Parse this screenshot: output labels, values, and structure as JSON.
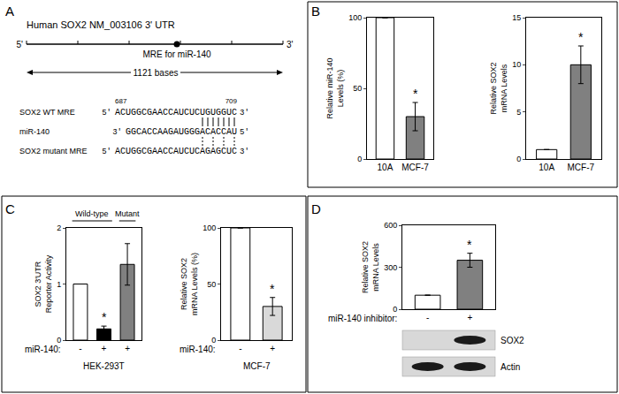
{
  "panel_labels": [
    "A",
    "B",
    "C",
    "D"
  ],
  "diagram": {
    "title": "Human SOX2 NM_003106 3' UTR",
    "ends": [
      "5'",
      "3'"
    ],
    "site_label": "MRE for miR-140",
    "length_label": "1121 bases",
    "positions": [
      687,
      709
    ],
    "rows": [
      {
        "label": "SOX2 WT MRE",
        "left": "5'",
        "sequence": "ACUGGCGAACCAUCUCUGUGGUC",
        "right": "3'"
      },
      {
        "label": "miR-140",
        "left": "3'",
        "sequence": "GGCACCAAGAUGGGACACCAU",
        "right": "5'"
      },
      {
        "label": "SOX2 mutant MRE",
        "left": "5'",
        "sequence": "ACUGGCGAACCAUCUCAGAGCUC",
        "right": "3'"
      }
    ]
  },
  "chart_data": [
    {
      "type": "bar",
      "categories": [
        "10A",
        "MCF-7"
      ],
      "values": [
        100,
        30
      ],
      "errors": [
        0,
        10
      ],
      "colors": [
        "#ffffff",
        "#808080"
      ],
      "ylabel": "Relative miR-140\nLevels (%)",
      "ylim": [
        0,
        100
      ],
      "yticks": [
        0,
        50,
        100
      ],
      "grid": false,
      "annotations": [
        {
          "category": 1,
          "text": "*"
        }
      ]
    },
    {
      "type": "bar",
      "categories": [
        "10A",
        "MCF-7"
      ],
      "values": [
        1,
        10
      ],
      "errors": [
        0,
        2
      ],
      "colors": [
        "#ffffff",
        "#808080"
      ],
      "ylabel": "Relative SOX2\nmRNA Levels",
      "ylim": [
        0,
        15
      ],
      "yticks": [
        0,
        5,
        10,
        15
      ],
      "grid": false,
      "annotations": [
        {
          "category": 1,
          "text": "*"
        }
      ]
    },
    {
      "type": "bar",
      "categories": [
        "-",
        "+",
        "+"
      ],
      "values": [
        1,
        0.2,
        1.35
      ],
      "errors": [
        0,
        0.05,
        0.37
      ],
      "colors": [
        "#ffffff",
        "#000000",
        "#808080"
      ],
      "ylabel": "SOX2 3'UTR\nReporter Activity",
      "ylim": [
        0,
        2
      ],
      "yticks": [
        0,
        1,
        2
      ],
      "grid": false,
      "x_row_label": "miR-140:",
      "xlabel": "HEK-293T",
      "groups": [
        {
          "label": "Wild-type",
          "from": 0,
          "to": 1
        },
        {
          "label": "Mutant",
          "from": 2,
          "to": 2
        }
      ],
      "annotations": [
        {
          "category": 1,
          "text": "*"
        }
      ]
    },
    {
      "type": "bar",
      "categories": [
        "-",
        "+"
      ],
      "values": [
        100,
        30
      ],
      "errors": [
        0,
        8
      ],
      "colors": [
        "#ffffff",
        "#d9d9d9"
      ],
      "ylabel": "Relative SOX2\nmRNA Levels (%)",
      "ylim": [
        0,
        100
      ],
      "yticks": [
        0,
        50,
        100
      ],
      "grid": false,
      "x_row_label": "miR-140:",
      "xlabel": "MCF-7",
      "annotations": [
        {
          "category": 1,
          "text": "*"
        }
      ]
    },
    {
      "type": "bar",
      "categories": [
        "-",
        "+"
      ],
      "values": [
        100,
        350
      ],
      "errors": [
        0,
        50
      ],
      "colors": [
        "#ffffff",
        "#808080"
      ],
      "ylabel": "Relative SOX2\nmRNA Levels",
      "ylim": [
        0,
        600
      ],
      "yticks": [
        0,
        300,
        600
      ],
      "grid": false,
      "x_row_label": "miR-140 inhibitor:",
      "annotations": [
        {
          "category": 1,
          "text": "*"
        }
      ]
    }
  ],
  "blot": {
    "labels": [
      "SOX2",
      "Actin"
    ],
    "bands": [
      [
        false,
        true
      ],
      [
        true,
        true
      ]
    ]
  }
}
